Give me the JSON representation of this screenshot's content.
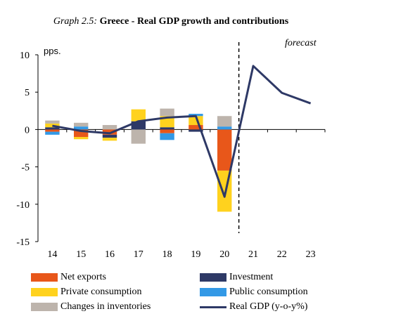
{
  "chart_data": {
    "type": "bar",
    "title_prefix": "Graph 2.5:",
    "title": "Greece - Real GDP growth and contributions",
    "ylabel": "pps.",
    "annotation": "forecast",
    "ylim": [
      -15,
      10
    ],
    "yticks": [
      10,
      5,
      0,
      -5,
      -10,
      -15
    ],
    "categories": [
      "14",
      "15",
      "16",
      "17",
      "18",
      "19",
      "20",
      "21",
      "22",
      "23"
    ],
    "series": [
      {
        "name": "Net exports",
        "color": "#E8571A",
        "values": [
          -0.3,
          -1.0,
          -0.7,
          0.0,
          -0.5,
          0.6,
          -5.5,
          null,
          null,
          null
        ]
      },
      {
        "name": "Investment",
        "color": "#2E3966",
        "values": [
          0.3,
          0.0,
          -0.4,
          1.1,
          0.3,
          -0.3,
          0.0,
          null,
          null,
          null
        ]
      },
      {
        "name": "Private consumption",
        "color": "#FFD21E",
        "values": [
          0.5,
          -0.3,
          -0.4,
          1.6,
          1.5,
          1.2,
          -5.5,
          null,
          null,
          null
        ]
      },
      {
        "name": "Public consumption",
        "color": "#3399E6",
        "values": [
          -0.4,
          0.4,
          0.0,
          0.0,
          -0.9,
          0.3,
          0.4,
          null,
          null,
          null
        ]
      },
      {
        "name": "Changes in inventories",
        "color": "#BDB4AC",
        "values": [
          0.4,
          0.5,
          0.6,
          -1.9,
          1.0,
          0.0,
          1.4,
          null,
          null,
          null
        ]
      }
    ],
    "line": {
      "name": "Real GDP (y-o-y%)",
      "color": "#2E3966",
      "values": [
        0.5,
        -0.2,
        -0.5,
        1.1,
        1.6,
        1.8,
        -9.0,
        8.5,
        4.9,
        3.5
      ]
    },
    "forecast_start_after": "20"
  }
}
